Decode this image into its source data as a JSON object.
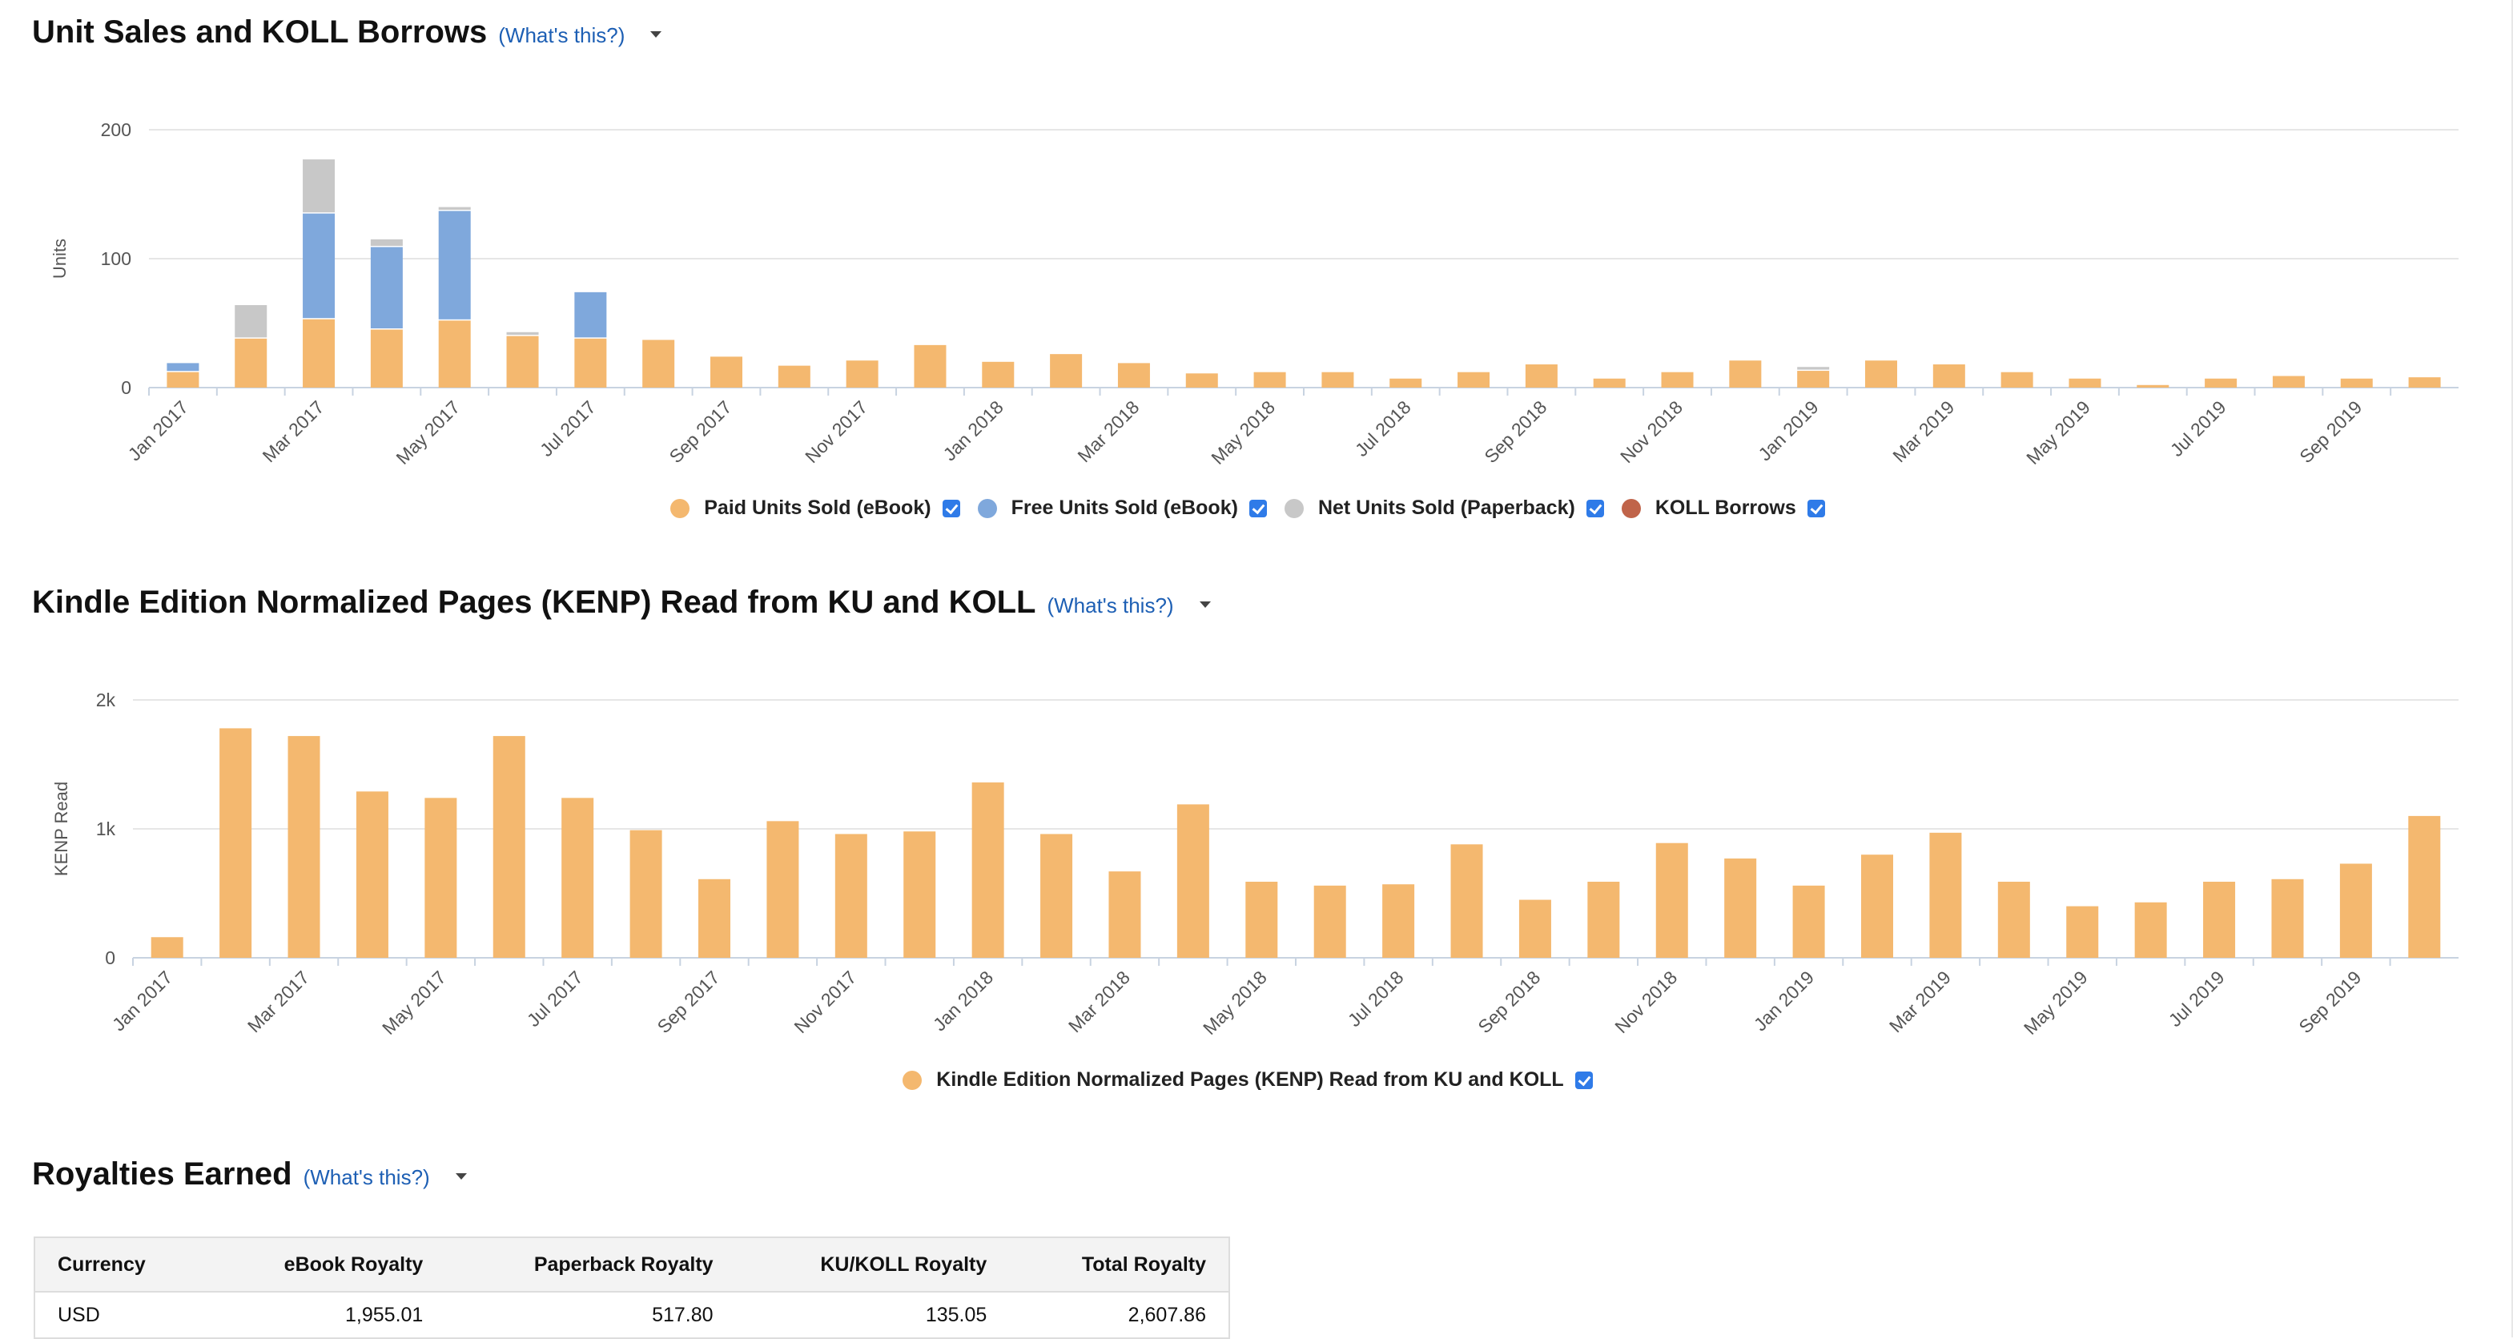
{
  "sections": {
    "units": {
      "title": "Unit Sales and KOLL Borrows",
      "whats_this": "(What's this?)"
    },
    "kenp": {
      "title": "Kindle Edition Normalized Pages (KENP) Read from KU and KOLL",
      "whats_this": "(What's this?)"
    },
    "royalties": {
      "title": "Royalties Earned",
      "whats_this": "(What's this?)"
    }
  },
  "legend_units": [
    {
      "label": "Paid Units Sold (eBook)",
      "color": "#f4b86f"
    },
    {
      "label": "Free Units Sold (eBook)",
      "color": "#7fa8dc"
    },
    {
      "label": "Net Units Sold (Paperback)",
      "color": "#c8c8c8"
    },
    {
      "label": "KOLL Borrows",
      "color": "#c0644a"
    }
  ],
  "legend_kenp": [
    {
      "label": "Kindle Edition Normalized Pages (KENP) Read from KU and KOLL",
      "color": "#f4b86f"
    }
  ],
  "chart_data": [
    {
      "type": "bar",
      "stacked": true,
      "title": "Unit Sales and KOLL Borrows",
      "ylabel": "Units",
      "ylim": [
        0,
        200
      ],
      "yticks": [
        0,
        100,
        200
      ],
      "ytick_labels": [
        "0",
        "100",
        "200"
      ],
      "categories": [
        "Jan 2017",
        "Feb 2017",
        "Mar 2017",
        "Apr 2017",
        "May 2017",
        "Jun 2017",
        "Jul 2017",
        "Aug 2017",
        "Sep 2017",
        "Oct 2017",
        "Nov 2017",
        "Dec 2017",
        "Jan 2018",
        "Feb 2018",
        "Mar 2018",
        "Apr 2018",
        "May 2018",
        "Jun 2018",
        "Jul 2018",
        "Aug 2018",
        "Sep 2018",
        "Oct 2018",
        "Nov 2018",
        "Dec 2018",
        "Jan 2019",
        "Feb 2019",
        "Mar 2019",
        "Apr 2019",
        "May 2019",
        "Jun 2019",
        "Jul 2019",
        "Aug 2019",
        "Sep 2019",
        "Oct 2019"
      ],
      "xtick_labels": [
        "Jan 2017",
        "Mar 2017",
        "May 2017",
        "Jul 2017",
        "Sep 2017",
        "Nov 2017",
        "Jan 2018",
        "Mar 2018",
        "May 2018",
        "Jul 2018",
        "Sep 2018",
        "Nov 2018",
        "Jan 2019",
        "Mar 2019",
        "May 2019",
        "Jul 2019",
        "Sep 2019"
      ],
      "series": [
        {
          "name": "Paid Units Sold (eBook)",
          "color": "#f4b86f",
          "values": [
            12,
            38,
            53,
            45,
            52,
            40,
            38,
            37,
            24,
            17,
            21,
            33,
            20,
            26,
            19,
            11,
            12,
            12,
            7,
            12,
            18,
            7,
            12,
            21,
            13,
            21,
            18,
            12,
            7,
            2,
            7,
            9,
            7,
            8
          ]
        },
        {
          "name": "Free Units Sold (eBook)",
          "color": "#7fa8dc",
          "values": [
            7,
            0,
            82,
            64,
            85,
            0,
            36,
            0,
            0,
            0,
            0,
            0,
            0,
            0,
            0,
            0,
            0,
            0,
            0,
            0,
            0,
            0,
            0,
            0,
            0,
            0,
            0,
            0,
            0,
            0,
            0,
            0,
            0,
            0
          ]
        },
        {
          "name": "Net Units Sold (Paperback)",
          "color": "#c8c8c8",
          "values": [
            0,
            26,
            42,
            6,
            3,
            3,
            0,
            0,
            0,
            0,
            0,
            0,
            0,
            0,
            0,
            0,
            0,
            0,
            0,
            0,
            0,
            0,
            0,
            0,
            3,
            0,
            0,
            0,
            0,
            0,
            0,
            0,
            0,
            0
          ]
        },
        {
          "name": "KOLL Borrows",
          "color": "#c0644a",
          "values": [
            0,
            0,
            0,
            0,
            0,
            0,
            0,
            0,
            0,
            0,
            0,
            0,
            0,
            0,
            0,
            0,
            0,
            0,
            0,
            0,
            0,
            0,
            0,
            0,
            0,
            0,
            0,
            0,
            0,
            0,
            0,
            0,
            0,
            0
          ]
        }
      ],
      "grid": true,
      "legend_position": "bottom"
    },
    {
      "type": "bar",
      "title": "Kindle Edition Normalized Pages (KENP) Read from KU and KOLL",
      "ylabel": "KENP Read",
      "ylim": [
        0,
        2000
      ],
      "yticks": [
        0,
        1000,
        2000
      ],
      "ytick_labels": [
        "0",
        "1k",
        "2k"
      ],
      "categories": [
        "Jan 2017",
        "Feb 2017",
        "Mar 2017",
        "Apr 2017",
        "May 2017",
        "Jun 2017",
        "Jul 2017",
        "Aug 2017",
        "Sep 2017",
        "Oct 2017",
        "Nov 2017",
        "Dec 2017",
        "Jan 2018",
        "Feb 2018",
        "Mar 2018",
        "Apr 2018",
        "May 2018",
        "Jun 2018",
        "Jul 2018",
        "Aug 2018",
        "Sep 2018",
        "Oct 2018",
        "Nov 2018",
        "Dec 2018",
        "Jan 2019",
        "Feb 2019",
        "Mar 2019",
        "Apr 2019",
        "May 2019",
        "Jun 2019",
        "Jul 2019",
        "Aug 2019",
        "Sep 2019",
        "Oct 2019"
      ],
      "xtick_labels": [
        "Jan 2017",
        "Mar 2017",
        "May 2017",
        "Jul 2017",
        "Sep 2017",
        "Nov 2017",
        "Jan 2018",
        "Mar 2018",
        "May 2018",
        "Jul 2018",
        "Sep 2018",
        "Nov 2018",
        "Jan 2019",
        "Mar 2019",
        "May 2019",
        "Jul 2019",
        "Sep 2019"
      ],
      "series": [
        {
          "name": "Kindle Edition Normalized Pages (KENP) Read from KU and KOLL",
          "color": "#f4b86f",
          "values": [
            160,
            1780,
            1720,
            1290,
            1240,
            1720,
            1240,
            990,
            610,
            1060,
            960,
            980,
            1360,
            960,
            670,
            1190,
            590,
            560,
            570,
            880,
            450,
            590,
            890,
            770,
            560,
            800,
            970,
            590,
            400,
            430,
            590,
            610,
            730,
            1100
          ]
        }
      ],
      "grid": true,
      "legend_position": "bottom"
    }
  ],
  "royalties_table": {
    "headers": [
      "Currency",
      "eBook Royalty",
      "Paperback Royalty",
      "KU/KOLL Royalty",
      "Total Royalty"
    ],
    "rows": [
      [
        "USD",
        "1,955.01",
        "517.80",
        "135.05",
        "2,607.86"
      ]
    ]
  }
}
